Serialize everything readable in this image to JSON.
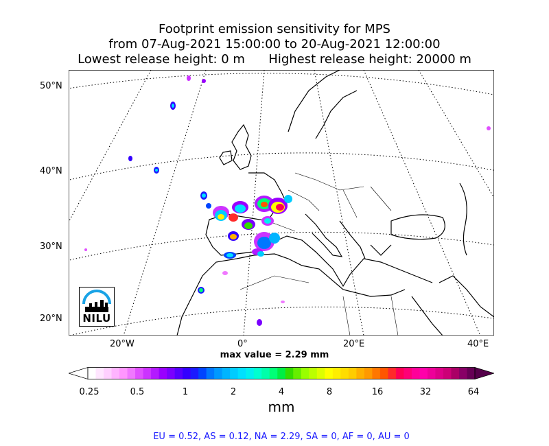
{
  "title": {
    "line1": "Footprint emission sensitivity for MPS",
    "line2": "from 07-Aug-2021 15:00:00 to 20-Aug-2021 12:00:00",
    "line3": "Lowest release height: 0 m      Highest release height: 20000 m"
  },
  "map": {
    "lat_labels": [
      "50°N",
      "40°N",
      "30°N",
      "20°N"
    ],
    "lon_labels": [
      "20°W",
      "0°",
      "20°E",
      "40°E"
    ],
    "max_value_text": "max value = 2.29 mm",
    "coast_color": "#000000",
    "graticule_color": "#000000"
  },
  "colorbar": {
    "ticks": [
      "0.25",
      "0.5",
      "1",
      "2",
      "4",
      "8",
      "16",
      "32",
      "64"
    ],
    "unit": "mm",
    "colors": [
      "#ffffff",
      "#ffe6ff",
      "#ffd0ff",
      "#ffb4ff",
      "#ff96ff",
      "#f078ff",
      "#e050ff",
      "#cc33ff",
      "#b31aff",
      "#9900ff",
      "#7a00ff",
      "#5500ff",
      "#3300ff",
      "#1a1aff",
      "#0044ff",
      "#0077ff",
      "#0099ff",
      "#00b4ff",
      "#00ccff",
      "#00e0ff",
      "#00f0f0",
      "#00ffd0",
      "#00ffaa",
      "#00ff77",
      "#00ee44",
      "#33dd00",
      "#66ee00",
      "#99ff00",
      "#bbff00",
      "#ddff00",
      "#ffff00",
      "#ffee00",
      "#ffdd00",
      "#ffcc00",
      "#ffb000",
      "#ff9900",
      "#ff7700",
      "#ff5500",
      "#ff2a2a",
      "#ff0055",
      "#ff0077",
      "#ff0099",
      "#ff00aa",
      "#ee0099",
      "#dd0088",
      "#cc0077",
      "#aa0066",
      "#880066",
      "#660055"
    ]
  },
  "stats": "EU = 0.52,  AS = 0.12,  NA = 2.29,  SA = 0,  AF = 0,  AU = 0",
  "logo": {
    "text": "NILU",
    "accent": "#1aa3e6"
  }
}
